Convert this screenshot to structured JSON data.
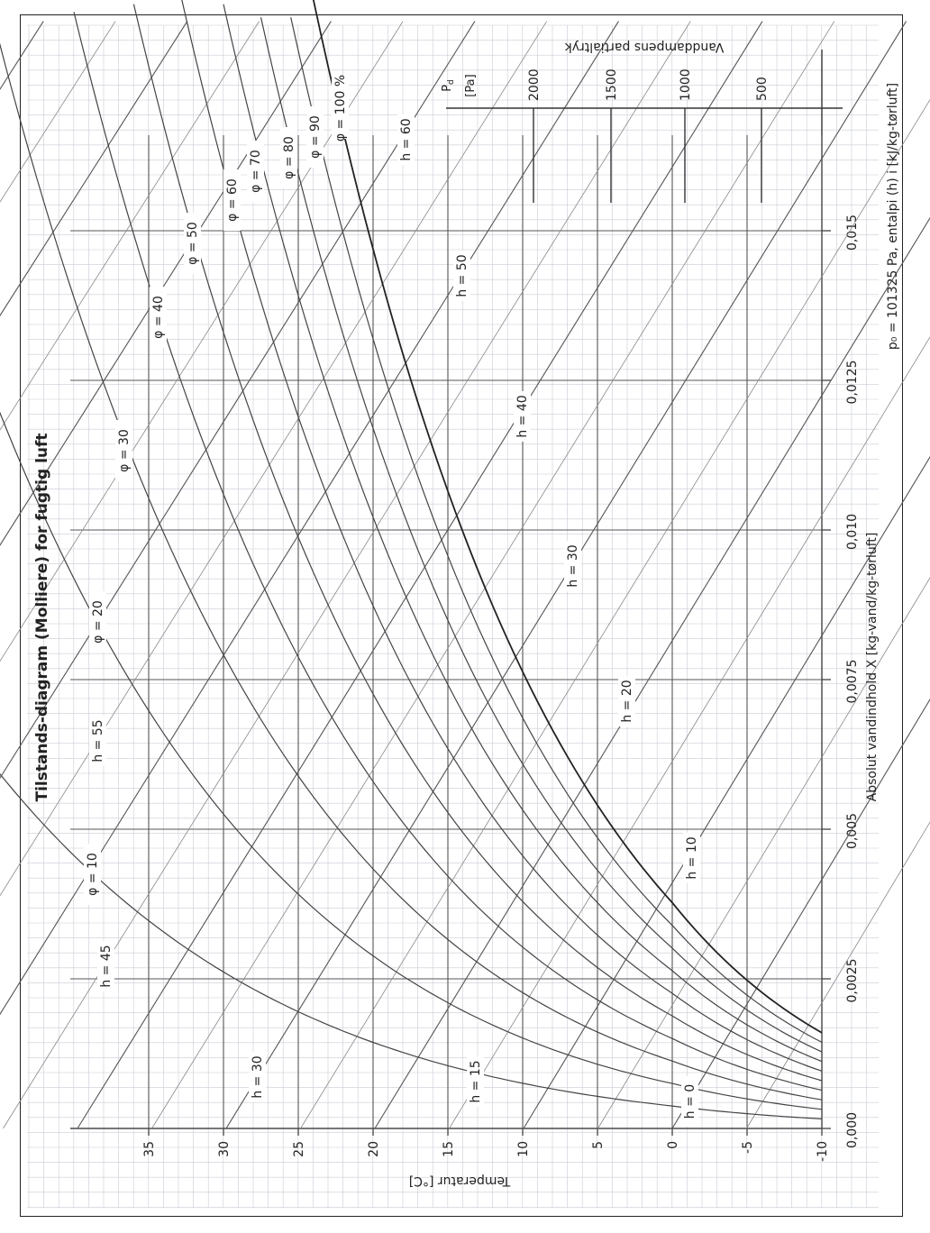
{
  "chart_data": {
    "type": "line",
    "title": "Tilstands-diagram (Molliere) for fugtig luft",
    "xlabel": "Absolut vandindhold X [kg-vand/kg-tørluft]",
    "ylabel": "Temperatur [°C]",
    "pressure_axis_label": "Vanddampens partialtryk",
    "pressure_unit_label": "[Pa]",
    "pressure_symbol": "P",
    "pressure_symbol_sub": "d",
    "footnote": "p₀ = 101325 Pa, entalpi (h) i [kJ/kg-tørluft]",
    "xlim": [
      0,
      0.0185
    ],
    "ylim": [
      -10,
      38
    ],
    "x_ticks": [
      0,
      0.0025,
      0.005,
      0.0075,
      0.01,
      0.0125,
      0.015
    ],
    "x_tick_labels": [
      "0,000",
      "0,0025",
      "0,005",
      "0,0075",
      "0,010",
      "0,0125",
      "0,015"
    ],
    "y_ticks": [
      -10,
      -5,
      0,
      5,
      10,
      15,
      20,
      25,
      30,
      35
    ],
    "y_tick_labels": [
      "-10",
      "-5",
      "0",
      "5",
      "10",
      "15",
      "20",
      "25",
      "30",
      "35"
    ],
    "pressure_ticks": [
      500,
      1000,
      1500,
      2000
    ],
    "pressure_tick_labels": [
      "500",
      "1000",
      "1500",
      "2000"
    ],
    "relative_humidity_curves": [
      {
        "label": "φ = 10",
        "phi": 0.1
      },
      {
        "label": "φ = 20",
        "phi": 0.2
      },
      {
        "label": "φ = 30",
        "phi": 0.3
      },
      {
        "label": "φ = 40",
        "phi": 0.4
      },
      {
        "label": "φ = 50",
        "phi": 0.5
      },
      {
        "label": "φ = 60",
        "phi": 0.6
      },
      {
        "label": "φ = 70",
        "phi": 0.7
      },
      {
        "label": "φ = 80",
        "phi": 0.8
      },
      {
        "label": "φ = 90",
        "phi": 0.9
      },
      {
        "label": "φ = 100 %",
        "phi": 1.0
      }
    ],
    "enthalpy_lines": [
      {
        "label": "h = 0",
        "h": 0
      },
      {
        "label": "h = 10",
        "h": 10
      },
      {
        "label": "h = 15",
        "h": 15
      },
      {
        "label": "h = 20",
        "h": 20
      },
      {
        "label": "h = 30",
        "h": 30
      },
      {
        "label": "h = 30",
        "h": 30
      },
      {
        "label": "h = 40",
        "h": 40
      },
      {
        "label": "h = 45",
        "h": 45
      },
      {
        "label": "h = 50",
        "h": 50
      },
      {
        "label": "h = 55",
        "h": 55
      },
      {
        "label": "h = 60",
        "h": 60
      }
    ],
    "grid": true
  }
}
